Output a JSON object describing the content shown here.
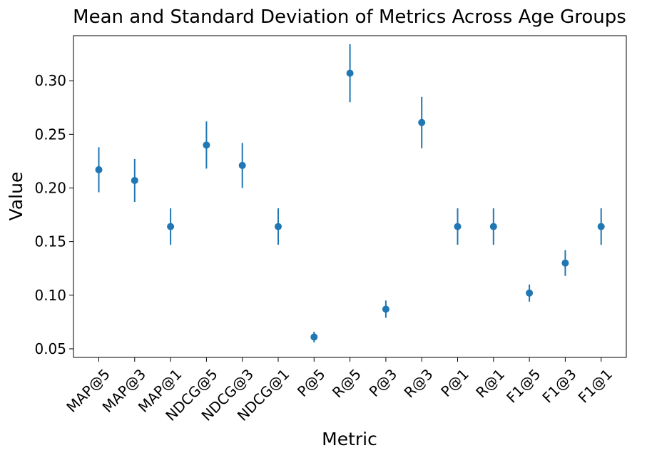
{
  "chart_data": {
    "type": "scatter",
    "error_bars": true,
    "title": "Mean and Standard Deviation of Metrics Across Age Groups",
    "xlabel": "Metric",
    "ylabel": "Value",
    "categories": [
      "MAP@5",
      "MAP@3",
      "MAP@1",
      "NDCG@5",
      "NDCG@3",
      "NDCG@1",
      "P@5",
      "R@5",
      "P@3",
      "R@3",
      "P@1",
      "R@1",
      "F1@5",
      "F1@3",
      "F1@1"
    ],
    "series": [
      {
        "mean": [
          0.217,
          0.207,
          0.164,
          0.24,
          0.221,
          0.164,
          0.061,
          0.307,
          0.087,
          0.261,
          0.164,
          0.164,
          0.102,
          0.13,
          0.164
        ],
        "std": [
          0.021,
          0.02,
          0.017,
          0.022,
          0.021,
          0.017,
          0.005,
          0.027,
          0.008,
          0.024,
          0.017,
          0.017,
          0.008,
          0.012,
          0.017
        ]
      }
    ],
    "ylim": [
      0.042,
      0.342
    ],
    "yticks": [
      "0.05",
      "0.10",
      "0.15",
      "0.20",
      "0.25",
      "0.30"
    ],
    "ytick_values": [
      0.05,
      0.1,
      0.15,
      0.2,
      0.25,
      0.3
    ],
    "xtick_rotation": 45,
    "grid": false,
    "marker_color": "#1f77b4"
  }
}
